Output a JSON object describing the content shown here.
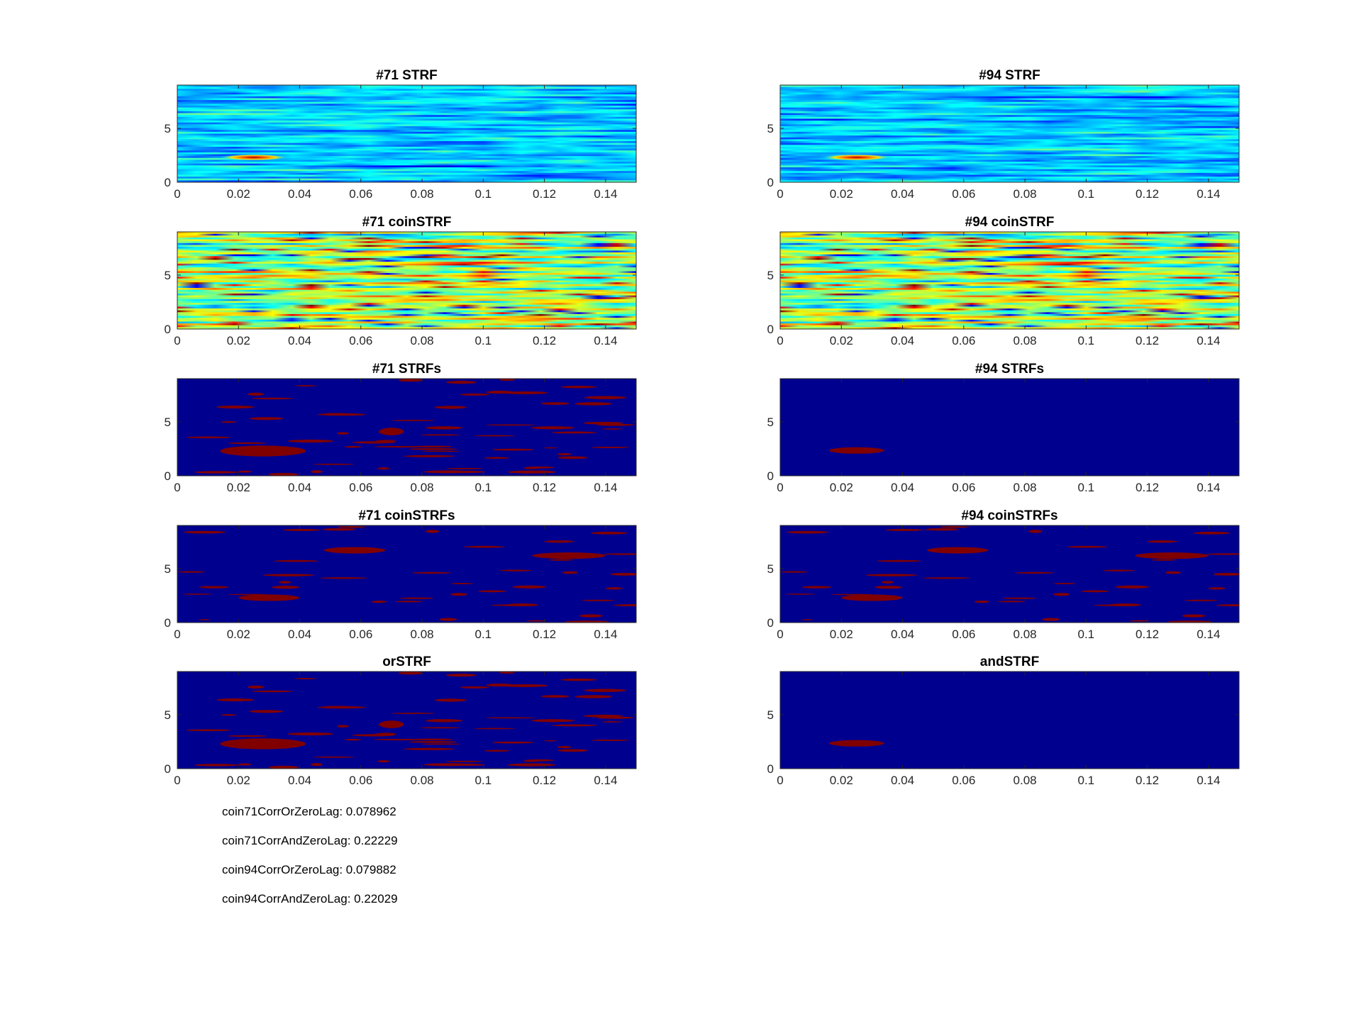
{
  "chart_data": [
    {
      "type": "heatmap",
      "title": "#71 STRF",
      "render": "continuous",
      "seed": 11,
      "hotspot": true,
      "xlim": [
        0,
        0.15
      ],
      "ylim": [
        0,
        9
      ],
      "xticks": [
        0,
        0.02,
        0.04,
        0.06,
        0.08,
        0.1,
        0.12,
        0.14
      ],
      "xticklabels": [
        "0",
        "0.02",
        "0.04",
        "0.06",
        "0.08",
        "0.1",
        "0.12",
        "0.14"
      ],
      "yticks": [
        0,
        5
      ],
      "yticklabels": [
        "0",
        "5"
      ]
    },
    {
      "type": "heatmap",
      "title": "#94 STRF",
      "render": "continuous",
      "seed": 23,
      "hotspot": true,
      "xlim": [
        0,
        0.15
      ],
      "ylim": [
        0,
        9
      ],
      "xticks": [
        0,
        0.02,
        0.04,
        0.06,
        0.08,
        0.1,
        0.12,
        0.14
      ],
      "xticklabels": [
        "0",
        "0.02",
        "0.04",
        "0.06",
        "0.08",
        "0.1",
        "0.12",
        "0.14"
      ],
      "yticks": [
        0,
        5
      ],
      "yticklabels": [
        "0",
        "5"
      ]
    },
    {
      "type": "heatmap",
      "title": "#71 coinSTRF",
      "render": "continuous-warm",
      "seed": 37,
      "hotspot": false,
      "xlim": [
        0,
        0.15
      ],
      "ylim": [
        0,
        9
      ],
      "xticks": [
        0,
        0.02,
        0.04,
        0.06,
        0.08,
        0.1,
        0.12,
        0.14
      ],
      "xticklabels": [
        "0",
        "0.02",
        "0.04",
        "0.06",
        "0.08",
        "0.1",
        "0.12",
        "0.14"
      ],
      "yticks": [
        0,
        5
      ],
      "yticklabels": [
        "0",
        "5"
      ]
    },
    {
      "type": "heatmap",
      "title": "#94 coinSTRF",
      "render": "continuous-warm",
      "seed": 37,
      "hotspot": false,
      "xlim": [
        0,
        0.15
      ],
      "ylim": [
        0,
        9
      ],
      "xticks": [
        0,
        0.02,
        0.04,
        0.06,
        0.08,
        0.1,
        0.12,
        0.14
      ],
      "xticklabels": [
        "0",
        "0.02",
        "0.04",
        "0.06",
        "0.08",
        "0.1",
        "0.12",
        "0.14"
      ],
      "yticks": [
        0,
        5
      ],
      "yticklabels": [
        "0",
        "5"
      ]
    },
    {
      "type": "heatmap",
      "title": "#71 STRFs",
      "render": "binary",
      "seed": 51,
      "streaks": 60,
      "blobs": [
        {
          "x": 0.028,
          "y": 2.3,
          "w": 0.014,
          "h": 0.5
        },
        {
          "x": 0.07,
          "y": 4.1,
          "w": 0.004,
          "h": 0.35
        }
      ],
      "xlim": [
        0,
        0.15
      ],
      "ylim": [
        0,
        9
      ],
      "xticks": [
        0,
        0.02,
        0.04,
        0.06,
        0.08,
        0.1,
        0.12,
        0.14
      ],
      "xticklabels": [
        "0",
        "0.02",
        "0.04",
        "0.06",
        "0.08",
        "0.1",
        "0.12",
        "0.14"
      ],
      "yticks": [
        0,
        5
      ],
      "yticklabels": [
        "0",
        "5"
      ]
    },
    {
      "type": "heatmap",
      "title": "#94 STRFs",
      "render": "binary",
      "seed": 0,
      "streaks": 0,
      "blobs": [
        {
          "x": 0.025,
          "y": 2.35,
          "w": 0.009,
          "h": 0.3
        }
      ],
      "xlim": [
        0,
        0.15
      ],
      "ylim": [
        0,
        9
      ],
      "xticks": [
        0,
        0.02,
        0.04,
        0.06,
        0.08,
        0.1,
        0.12,
        0.14
      ],
      "xticklabels": [
        "0",
        "0.02",
        "0.04",
        "0.06",
        "0.08",
        "0.1",
        "0.12",
        "0.14"
      ],
      "yticks": [
        0,
        5
      ],
      "yticklabels": [
        "0",
        "5"
      ]
    },
    {
      "type": "heatmap",
      "title": "#71 coinSTRFs",
      "render": "binary",
      "seed": 71,
      "streaks": 40,
      "blobs": [
        {
          "x": 0.058,
          "y": 6.7,
          "w": 0.01,
          "h": 0.3
        },
        {
          "x": 0.128,
          "y": 6.2,
          "w": 0.012,
          "h": 0.3
        },
        {
          "x": 0.03,
          "y": 2.3,
          "w": 0.01,
          "h": 0.3
        }
      ],
      "xlim": [
        0,
        0.15
      ],
      "ylim": [
        0,
        9
      ],
      "xticks": [
        0,
        0.02,
        0.04,
        0.06,
        0.08,
        0.1,
        0.12,
        0.14
      ],
      "xticklabels": [
        "0",
        "0.02",
        "0.04",
        "0.06",
        "0.08",
        "0.1",
        "0.12",
        "0.14"
      ],
      "yticks": [
        0,
        5
      ],
      "yticklabels": [
        "0",
        "5"
      ]
    },
    {
      "type": "heatmap",
      "title": "#94 coinSTRFs",
      "render": "binary",
      "seed": 71,
      "streaks": 40,
      "blobs": [
        {
          "x": 0.058,
          "y": 6.7,
          "w": 0.01,
          "h": 0.3
        },
        {
          "x": 0.128,
          "y": 6.2,
          "w": 0.012,
          "h": 0.3
        },
        {
          "x": 0.03,
          "y": 2.3,
          "w": 0.01,
          "h": 0.3
        }
      ],
      "xlim": [
        0,
        0.15
      ],
      "ylim": [
        0,
        9
      ],
      "xticks": [
        0,
        0.02,
        0.04,
        0.06,
        0.08,
        0.1,
        0.12,
        0.14
      ],
      "xticklabels": [
        "0",
        "0.02",
        "0.04",
        "0.06",
        "0.08",
        "0.1",
        "0.12",
        "0.14"
      ],
      "yticks": [
        0,
        5
      ],
      "yticklabels": [
        "0",
        "5"
      ]
    },
    {
      "type": "heatmap",
      "title": "orSTRF",
      "render": "binary",
      "seed": 51,
      "streaks": 60,
      "blobs": [
        {
          "x": 0.028,
          "y": 2.3,
          "w": 0.014,
          "h": 0.5
        },
        {
          "x": 0.07,
          "y": 4.1,
          "w": 0.004,
          "h": 0.35
        }
      ],
      "xlim": [
        0,
        0.15
      ],
      "ylim": [
        0,
        9
      ],
      "xticks": [
        0,
        0.02,
        0.04,
        0.06,
        0.08,
        0.1,
        0.12,
        0.14
      ],
      "xticklabels": [
        "0",
        "0.02",
        "0.04",
        "0.06",
        "0.08",
        "0.1",
        "0.12",
        "0.14"
      ],
      "yticks": [
        0,
        5
      ],
      "yticklabels": [
        "0",
        "5"
      ]
    },
    {
      "type": "heatmap",
      "title": "andSTRF",
      "render": "binary",
      "seed": 0,
      "streaks": 0,
      "blobs": [
        {
          "x": 0.025,
          "y": 2.35,
          "w": 0.009,
          "h": 0.3
        }
      ],
      "xlim": [
        0,
        0.15
      ],
      "ylim": [
        0,
        9
      ],
      "xticks": [
        0,
        0.02,
        0.04,
        0.06,
        0.08,
        0.1,
        0.12,
        0.14
      ],
      "xticklabels": [
        "0",
        "0.02",
        "0.04",
        "0.06",
        "0.08",
        "0.1",
        "0.12",
        "0.14"
      ],
      "yticks": [
        0,
        5
      ],
      "yticklabels": [
        "0",
        "5"
      ]
    }
  ],
  "stats": [
    "coin71CorrOrZeroLag: 0.078962",
    "coin71CorrAndZeroLag: 0.22229",
    "coin94CorrOrZeroLag: 0.079882",
    "coin94CorrAndZeroLag: 0.22029"
  ],
  "colors": {
    "background_blue": "#00008f",
    "hot_red": "#800000",
    "axis": "#262626"
  }
}
